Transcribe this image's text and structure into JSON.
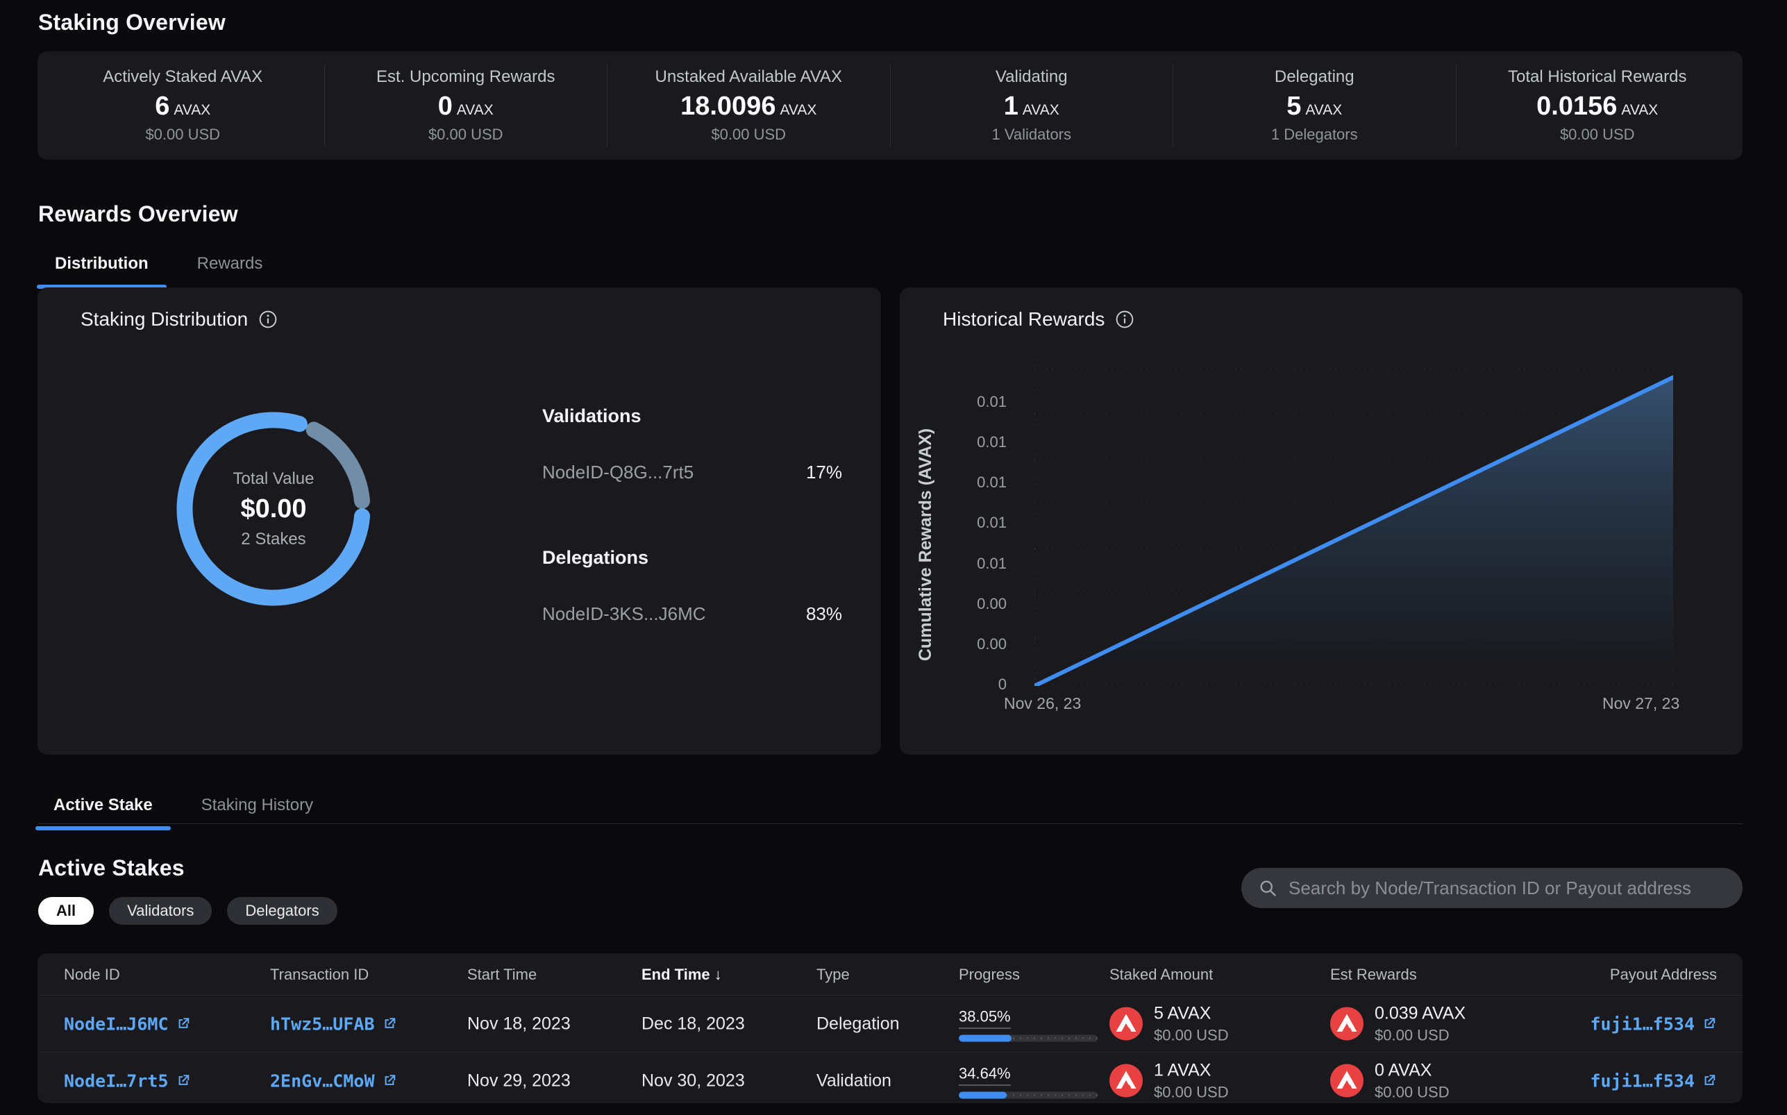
{
  "theme": {
    "accent_blue": "#3f8df1",
    "link_blue": "#5da8f7",
    "avax_red": "#e84142",
    "panel_bg": "#1a1a1e",
    "page_bg": "#0a0a0d"
  },
  "page": {
    "title": "Staking Overview"
  },
  "stats": {
    "items": [
      {
        "label": "Actively Staked AVAX",
        "value": "6",
        "unit": "AVAX",
        "sub": "$0.00 USD"
      },
      {
        "label": "Est. Upcoming Rewards",
        "value": "0",
        "unit": "AVAX",
        "sub": "$0.00 USD"
      },
      {
        "label": "Unstaked Available AVAX",
        "value": "18.0096",
        "unit": "AVAX",
        "sub": "$0.00 USD"
      },
      {
        "label": "Validating",
        "value": "1",
        "unit": "AVAX",
        "sub": "1 Validators"
      },
      {
        "label": "Delegating",
        "value": "5",
        "unit": "AVAX",
        "sub": "1 Delegators"
      },
      {
        "label": "Total Historical Rewards",
        "value": "0.0156",
        "unit": "AVAX",
        "sub": "$0.00 USD"
      }
    ]
  },
  "rewards_overview": {
    "title": "Rewards Overview",
    "tabs": [
      {
        "label": "Distribution"
      },
      {
        "label": "Rewards"
      }
    ]
  },
  "distribution_card": {
    "title": "Staking Distribution",
    "center": {
      "label": "Total Value",
      "value": "$0.00",
      "sub": "2 Stakes"
    },
    "validations_heading": "Validations",
    "validations": [
      {
        "node": "NodeID-Q8G...7rt5",
        "pct": "17%"
      }
    ],
    "delegations_heading": "Delegations",
    "delegations": [
      {
        "node": "NodeID-3KS...J6MC",
        "pct": "83%"
      }
    ]
  },
  "historical_card": {
    "title": "Historical Rewards",
    "ylabel": "Cumulative Rewards (AVAX)",
    "yticks": [
      "0.01",
      "0.01",
      "0.01",
      "0.01",
      "0.01",
      "0.00",
      "0.00",
      "0"
    ],
    "xtick_left": "Nov 26, 23",
    "xtick_right": "Nov 27, 23"
  },
  "chart_data": [
    {
      "type": "pie",
      "title": "Staking Distribution",
      "center_label": "Total Value",
      "center_value": "$0.00",
      "center_sub": "2 Stakes",
      "slices": [
        {
          "label": "NodeID-3KS...J6MC",
          "group": "Delegations",
          "value": 83,
          "color": "#5fa8f6"
        },
        {
          "label": "NodeID-Q8G...7rt5",
          "group": "Validations",
          "value": 17,
          "color": "#8fb4d6"
        }
      ]
    },
    {
      "type": "area",
      "title": "Historical Rewards",
      "ylabel": "Cumulative Rewards (AVAX)",
      "x": [
        "Nov 26, 23",
        "Nov 27, 23"
      ],
      "values": [
        0,
        0.0156
      ],
      "ylim": [
        0,
        0.016
      ],
      "yticks": [
        "0.01",
        "0.01",
        "0.01",
        "0.01",
        "0.01",
        "0.00",
        "0.00",
        "0"
      ],
      "line_color": "#3f8df1",
      "grid": "dotted"
    }
  ],
  "stake_tabs": [
    {
      "label": "Active Stake"
    },
    {
      "label": "Staking History"
    }
  ],
  "active_stakes": {
    "title": "Active Stakes",
    "filters": [
      {
        "label": "All"
      },
      {
        "label": "Validators"
      },
      {
        "label": "Delegators"
      }
    ],
    "search_placeholder": "Search by Node/Transaction ID or Payout address",
    "table": {
      "columns": [
        "Node ID",
        "Transaction ID",
        "Start Time",
        "End Time",
        "Type",
        "Progress",
        "Staked Amount",
        "Est Rewards",
        "Payout Address"
      ],
      "sort_arrow": "↓",
      "rows": [
        {
          "node_id": "NodeI…J6MC",
          "tx_id": "hTwz5…UFAB",
          "start": "Nov 18, 2023",
          "end": "Dec 18, 2023",
          "type": "Delegation",
          "progress": "38.05%",
          "progress_pct": 38.05,
          "staked": "5 AVAX",
          "staked_usd": "$0.00 USD",
          "est": "0.039 AVAX",
          "est_usd": "$0.00 USD",
          "payout": "fuji1…f534"
        },
        {
          "node_id": "NodeI…7rt5",
          "tx_id": "2EnGv…CMoW",
          "start": "Nov 29, 2023",
          "end": "Nov 30, 2023",
          "type": "Validation",
          "progress": "34.64%",
          "progress_pct": 34.64,
          "staked": "1 AVAX",
          "staked_usd": "$0.00 USD",
          "est": "0 AVAX",
          "est_usd": "$0.00 USD",
          "payout": "fuji1…f534"
        }
      ]
    }
  }
}
